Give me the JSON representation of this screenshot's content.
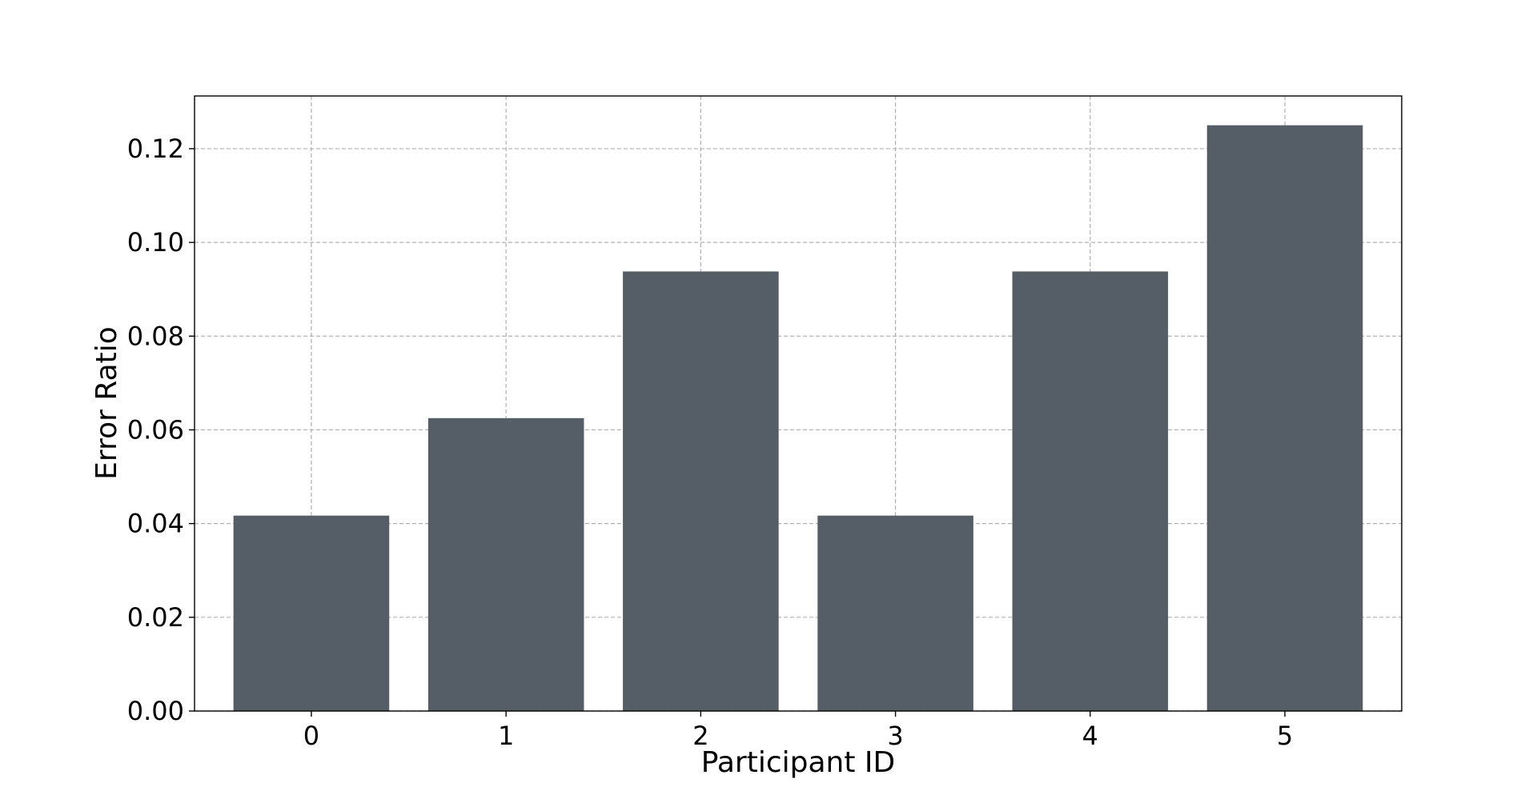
{
  "chart_data": {
    "type": "bar",
    "categories": [
      "0",
      "1",
      "2",
      "3",
      "4",
      "5"
    ],
    "values": [
      0.0417,
      0.0625,
      0.0938,
      0.0417,
      0.0938,
      0.125
    ],
    "xlabel": "Participant ID",
    "ylabel": "Error Ratio",
    "ylim": [
      0,
      0.13125
    ],
    "yticks": [
      "0.00",
      "0.02",
      "0.04",
      "0.06",
      "0.08",
      "0.10",
      "0.12"
    ],
    "bar_color": "#555d66",
    "grid": true
  }
}
